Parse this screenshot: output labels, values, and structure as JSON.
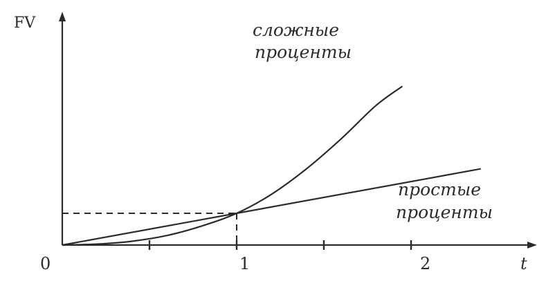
{
  "chart_data": {
    "type": "line",
    "ylabel": "FV",
    "xlabel": "t",
    "origin_label": "0",
    "x_tick_labels": [
      {
        "x": 1,
        "label": "1"
      },
      {
        "x": 2,
        "label": "2"
      }
    ],
    "x_minor_ticks": [
      0.5,
      1.5
    ],
    "xlim": [
      0,
      2.65
    ],
    "ylim": [
      0,
      5.3
    ],
    "reference": {
      "x": 1,
      "y": 1
    },
    "series": [
      {
        "name_lines": [
          "сложные",
          "проценты"
        ],
        "x": [
          0,
          0.2,
          0.4,
          0.6,
          0.8,
          1.0,
          1.2,
          1.4,
          1.6,
          1.8,
          1.95
        ],
        "y": [
          0,
          0.03,
          0.12,
          0.3,
          0.6,
          1.0,
          1.6,
          2.4,
          3.35,
          4.4,
          5.0
        ]
      },
      {
        "name_lines": [
          "простые",
          "проценты"
        ],
        "x": [
          0,
          1.0,
          2.4
        ],
        "y": [
          0,
          1.0,
          2.4
        ]
      }
    ]
  }
}
